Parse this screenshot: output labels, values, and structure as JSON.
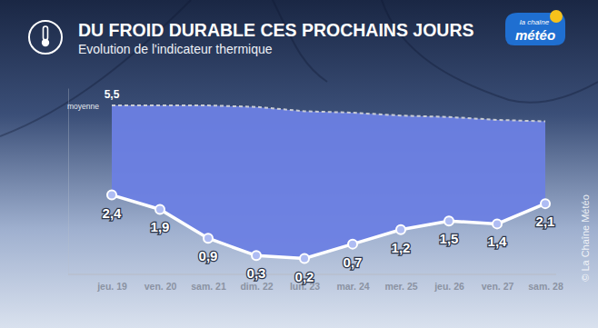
{
  "chart_data": {
    "type": "line",
    "title": "DU FROID DURABLE CES PROCHAINS JOURS",
    "subtitle": "Evolution de l'indicateur thermique",
    "categories": [
      "jeu. 19",
      "ven. 20",
      "sam. 21",
      "dim. 22",
      "lun. 23",
      "mar. 24",
      "mer. 25",
      "jeu. 26",
      "ven. 27",
      "sam. 28"
    ],
    "series": [
      {
        "values": [
          2.4,
          1.9,
          0.9,
          0.3,
          0.2,
          0.7,
          1.2,
          1.5,
          1.4,
          2.1
        ],
        "value_labels": [
          "2,4",
          "1,9",
          "0,9",
          "0,3",
          "0,2",
          "0,7",
          "1,2",
          "1,5",
          "1,4",
          "2,1"
        ],
        "color": "#ffffff",
        "marker": "circle",
        "line_style": "solid"
      },
      {
        "name": "moyenne",
        "values": [
          5.5,
          5.5,
          5.5,
          5.45,
          5.3,
          5.25,
          5.15,
          5.1,
          5.0,
          4.95
        ],
        "value_labels": [
          "5,5",
          null,
          null,
          null,
          null,
          null,
          null,
          null,
          null,
          null
        ],
        "color": "#c9ccd4",
        "line_style": "dashed"
      }
    ],
    "ylim": [
      -0.35,
      6.1
    ],
    "yticks": [],
    "tick_labels": "x",
    "grid": false,
    "data_labels": true,
    "annotations": [
      "la chaîne",
      "météo",
      "© La Chaîne Météo"
    ]
  }
}
